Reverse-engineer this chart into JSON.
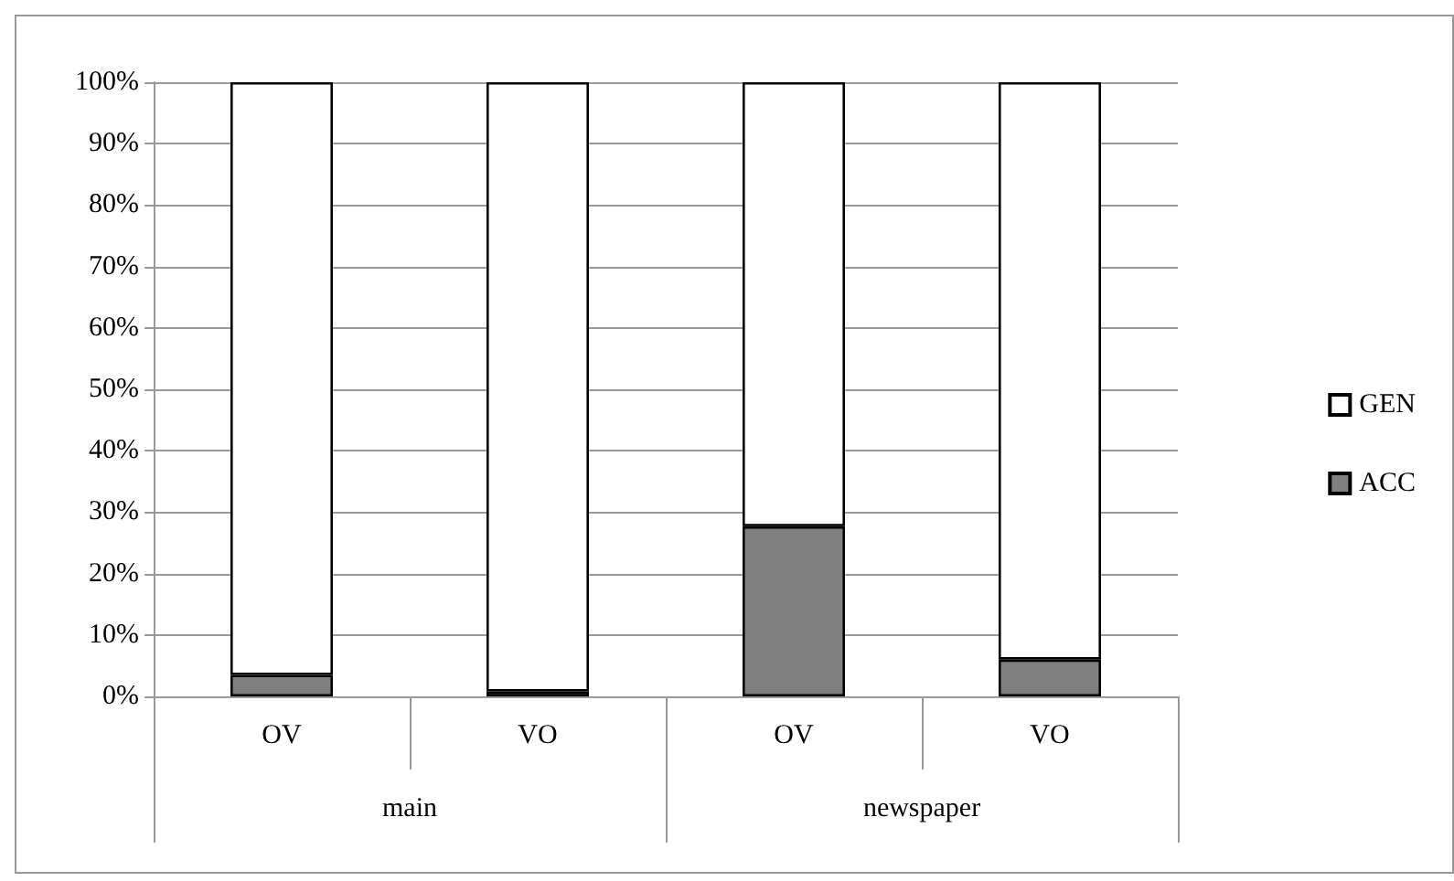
{
  "chart_data": {
    "type": "bar",
    "stacked": true,
    "categories": [
      "OV",
      "VO",
      "OV",
      "VO"
    ],
    "series": [
      {
        "name": "ACC",
        "color": "#808080",
        "values": [
          3.5,
          0.8,
          27.7,
          6
        ]
      },
      {
        "name": "GEN",
        "color": "#ffffff",
        "values": [
          96.5,
          99.2,
          72.3,
          94
        ]
      }
    ],
    "ylim": [
      0,
      100
    ],
    "yticks": [
      {
        "value": 0,
        "label": "0%"
      },
      {
        "value": 10,
        "label": "10%"
      },
      {
        "value": 20,
        "label": "20%"
      },
      {
        "value": 30,
        "label": "30%"
      },
      {
        "value": 40,
        "label": "40%"
      },
      {
        "value": 50,
        "label": "50%"
      },
      {
        "value": 60,
        "label": "60%"
      },
      {
        "value": 70,
        "label": "70%"
      },
      {
        "value": 80,
        "label": "80%"
      },
      {
        "value": 90,
        "label": "90%"
      },
      {
        "value": 100,
        "label": "100%"
      }
    ],
    "annotations": [
      "main",
      "newspaper"
    ],
    "grid": "y",
    "legend": "right"
  }
}
